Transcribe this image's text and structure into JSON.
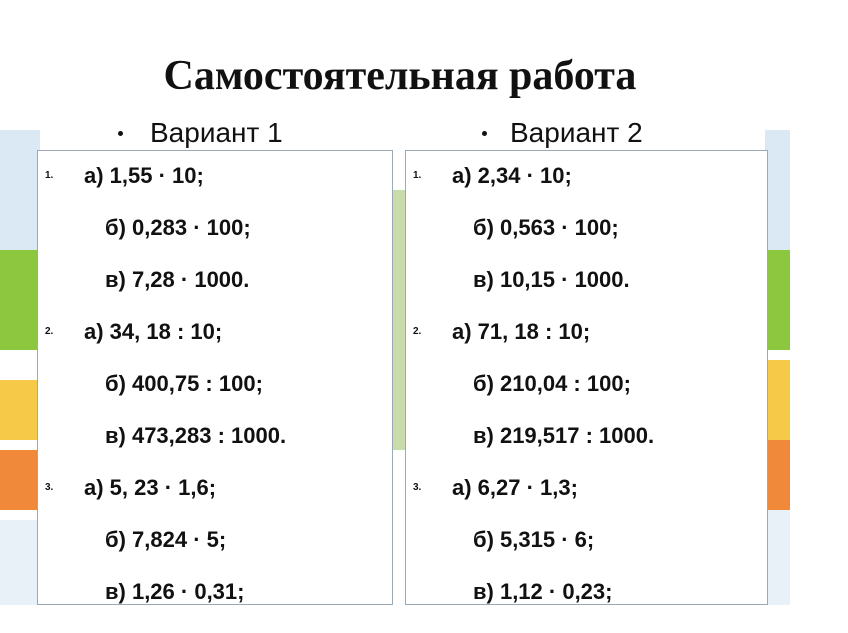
{
  "title": "Самостоятельная работа",
  "variants": [
    {
      "label": "Вариант 1",
      "tasks": [
        {
          "number": "1.",
          "items": [
            "а) 1,55 · 10;",
            "б) 0,283 · 100;",
            "в) 7,28 · 1000."
          ]
        },
        {
          "number": "2.",
          "items": [
            "а) 34, 18 : 10;",
            "б) 400,75 : 100;",
            "в) 473,283 : 1000."
          ]
        },
        {
          "number": "3.",
          "items": [
            "а) 5, 23 · 1,6;",
            "б) 7,824 · 5;",
            "в) 1,26 · 0,31;"
          ]
        }
      ]
    },
    {
      "label": "Вариант 2",
      "tasks": [
        {
          "number": "1.",
          "items": [
            "а) 2,34 · 10;",
            "б) 0,563 · 100;",
            "в) 10,15 · 1000."
          ]
        },
        {
          "number": "2.",
          "items": [
            "а) 71, 18 : 10;",
            "б) 210,04 : 100;",
            "в) 219,517 : 1000."
          ]
        },
        {
          "number": "3.",
          "items": [
            "а) 6,27 · 1,3;",
            "б) 5,315 · 6;",
            "в) 1,12 · 0,23;"
          ]
        }
      ]
    }
  ]
}
